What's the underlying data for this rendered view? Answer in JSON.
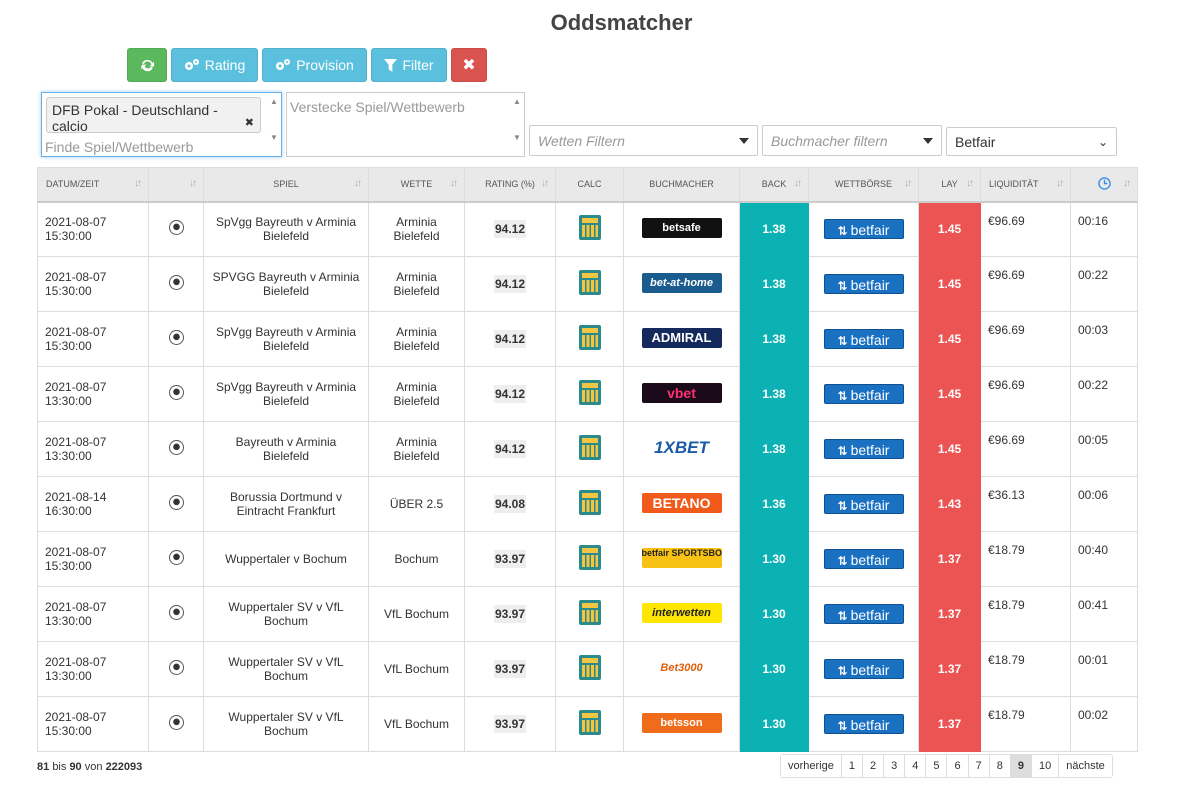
{
  "page": {
    "title": "Oddsmatcher"
  },
  "toolbar": {
    "refresh_icon": "refresh-icon",
    "rating_label": "Rating",
    "provision_label": "Provision",
    "filter_label": "Filter",
    "close_symbol": "✖",
    "colors": {
      "green": "#5cb85c",
      "blue": "#5bc0de",
      "red": "#d9534f"
    }
  },
  "filters": {
    "selected_competition": "DFB Pokal - Deutschland - calcio",
    "remove_symbol": "✖",
    "find_placeholder": "Finde Spiel/Wettbewerb",
    "hide_placeholder": "Verstecke Spiel/Wettbewerb",
    "bets_placeholder": "Wetten Filtern",
    "bookmaker_placeholder": "Buchmacher filtern",
    "exchange_value": "Betfair"
  },
  "table": {
    "headers": {
      "date": "Datum/Zeit",
      "sport": "",
      "match": "Spiel",
      "bet": "Wette",
      "rating": "Rating (%)",
      "calc": "Calc",
      "bookmaker": "Buchmacher",
      "back": "Back",
      "exchange": "Wettbörse",
      "lay": "Lay",
      "liquidity": "Liquidität",
      "time_icon": "clock-icon"
    },
    "colors": {
      "back": "#0cb1b3",
      "lay": "#ec5353"
    },
    "rows": [
      {
        "date": "2021-08-07",
        "time": "15:30:00",
        "match": "SpVgg Bayreuth v Arminia Bielefeld",
        "bet": "Arminia Bielefeld",
        "rating": "94.12",
        "bookmaker": "betsafe",
        "back": "1.38",
        "exchange": "betfair",
        "lay": "1.45",
        "liquidity": "€96.69",
        "age": "00:16"
      },
      {
        "date": "2021-08-07",
        "time": "15:30:00",
        "match": "SPVGG Bayreuth v Arminia Bielefeld",
        "bet": "Arminia Bielefeld",
        "rating": "94.12",
        "bookmaker": "bet-at-home",
        "back": "1.38",
        "exchange": "betfair",
        "lay": "1.45",
        "liquidity": "€96.69",
        "age": "00:22"
      },
      {
        "date": "2021-08-07",
        "time": "15:30:00",
        "match": "SpVgg Bayreuth v Arminia Bielefeld",
        "bet": "Arminia Bielefeld",
        "rating": "94.12",
        "bookmaker": "ADMIRAL",
        "back": "1.38",
        "exchange": "betfair",
        "lay": "1.45",
        "liquidity": "€96.69",
        "age": "00:03"
      },
      {
        "date": "2021-08-07",
        "time": "13:30:00",
        "match": "SpVgg Bayreuth v Arminia Bielefeld",
        "bet": "Arminia Bielefeld",
        "rating": "94.12",
        "bookmaker": "vbet",
        "back": "1.38",
        "exchange": "betfair",
        "lay": "1.45",
        "liquidity": "€96.69",
        "age": "00:22"
      },
      {
        "date": "2021-08-07",
        "time": "13:30:00",
        "match": "Bayreuth v Arminia Bielefeld",
        "bet": "Arminia Bielefeld",
        "rating": "94.12",
        "bookmaker": "1XBET",
        "back": "1.38",
        "exchange": "betfair",
        "lay": "1.45",
        "liquidity": "€96.69",
        "age": "00:05"
      },
      {
        "date": "2021-08-14",
        "time": "16:30:00",
        "match": "Borussia Dortmund v Eintracht Frankfurt",
        "bet": "ÜBER 2.5",
        "rating": "94.08",
        "bookmaker": "BETANO",
        "back": "1.36",
        "exchange": "betfair",
        "lay": "1.43",
        "liquidity": "€36.13",
        "age": "00:06"
      },
      {
        "date": "2021-08-07",
        "time": "15:30:00",
        "match": "Wuppertaler v Bochum",
        "bet": "Bochum",
        "rating": "93.97",
        "bookmaker": "betfair SPORTSBOOK",
        "back": "1.30",
        "exchange": "betfair",
        "lay": "1.37",
        "liquidity": "€18.79",
        "age": "00:40"
      },
      {
        "date": "2021-08-07",
        "time": "13:30:00",
        "match": "Wuppertaler SV v VfL Bochum",
        "bet": "VfL Bochum",
        "rating": "93.97",
        "bookmaker": "interwetten",
        "back": "1.30",
        "exchange": "betfair",
        "lay": "1.37",
        "liquidity": "€18.79",
        "age": "00:41"
      },
      {
        "date": "2021-08-07",
        "time": "13:30:00",
        "match": "Wuppertaler SV v VfL Bochum",
        "bet": "VfL Bochum",
        "rating": "93.97",
        "bookmaker": "Bet3000",
        "back": "1.30",
        "exchange": "betfair",
        "lay": "1.37",
        "liquidity": "€18.79",
        "age": "00:01"
      },
      {
        "date": "2021-08-07",
        "time": "15:30:00",
        "match": "Wuppertaler SV v VfL Bochum",
        "bet": "VfL Bochum",
        "rating": "93.97",
        "bookmaker": "betsson",
        "back": "1.30",
        "exchange": "betfair",
        "lay": "1.37",
        "liquidity": "€18.79",
        "age": "00:02"
      }
    ]
  },
  "footer": {
    "from": "81",
    "bis": "bis",
    "to": "90",
    "von": "von",
    "total": "222093",
    "pagination": {
      "prev": "vorherige",
      "pages": [
        "1",
        "2",
        "3",
        "4",
        "5",
        "6",
        "7",
        "8",
        "9",
        "10"
      ],
      "active": "9",
      "next": "nächste"
    }
  }
}
